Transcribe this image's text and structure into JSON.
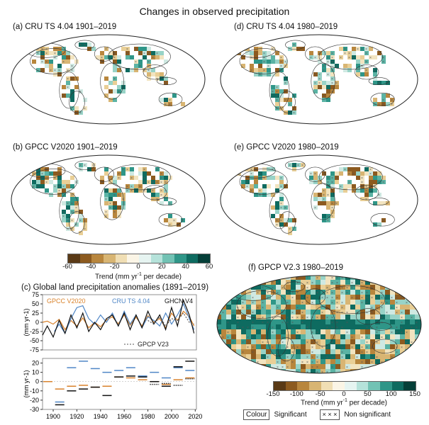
{
  "figure_title": "Changes in observed precipitation",
  "maps": [
    {
      "key": "a",
      "title": "(a) CRU TS 4.04 1901–2019"
    },
    {
      "key": "d",
      "title": "(d) CRU TS 4.04 1980–2019"
    },
    {
      "key": "b",
      "title": "(b) GPCC V2020 1901–2019"
    },
    {
      "key": "e",
      "title": "(e) GPCC V2020 1980–2019"
    },
    {
      "key": "f",
      "title": "(f) GPCP V2.3 1980–2019"
    }
  ],
  "colorbar_left": {
    "ticks": [
      "-60",
      "-40",
      "-20",
      "0",
      "20",
      "40",
      "60"
    ],
    "label": "Trend (mm yr",
    "label_sup": "-1",
    "label_end": " per decade)",
    "colors": [
      "#5a3a16",
      "#8c5a1f",
      "#b8863d",
      "#d8b573",
      "#f0deb4",
      "#fbf5e6",
      "#e6f4f1",
      "#b5e2da",
      "#72c2b4",
      "#2f9688",
      "#0e6b60",
      "#053f38"
    ]
  },
  "colorbar_right": {
    "ticks": [
      "-150",
      "-100",
      "-50",
      "0",
      "50",
      "100",
      "150"
    ],
    "label": "Trend (mm yr",
    "label_sup": "-1",
    "label_end": " per decade)",
    "colors": [
      "#5a3a16",
      "#8c5a1f",
      "#b8863d",
      "#d8b573",
      "#f0deb4",
      "#fbf5e6",
      "#e6f4f1",
      "#b5e2da",
      "#72c2b4",
      "#2f9688",
      "#0e6b60",
      "#053f38"
    ]
  },
  "legend_key": {
    "colour": "Colour",
    "significant": "Significant",
    "cross": "× × ×",
    "nonsig": "Non significant"
  },
  "panel_c": {
    "title": "(c) Global land precipitation anomalies (1891–2019)",
    "series_labels": {
      "gpcc": "GPCC V2020",
      "cru": "CRU TS 4.04",
      "ghcn": "GHCN V4",
      "gpcp": "GPCP V23"
    },
    "colors": {
      "gpcc": "#d9822b",
      "cru": "#4f86c6",
      "ghcn": "#111111",
      "gpcp": "#555555"
    },
    "top_ylabel": "(mm yr",
    "top_ylabel_sup": "-1",
    "top_yticks": [
      "75",
      "50",
      "25",
      "0",
      "-25",
      "-50",
      "-75"
    ],
    "bottom_ylabel": "(mm yr",
    "bottom_ylabel_sup": "-1",
    "bottom_yticks": [
      "20",
      "10",
      "0",
      "-10",
      "-20",
      "-30"
    ],
    "xticks": [
      "1900",
      "1920",
      "1940",
      "1960",
      "1980",
      "2000",
      "2020"
    ]
  },
  "chart_data": {
    "type": "line",
    "x_range": [
      1891,
      2019
    ],
    "top_ylim": [
      -75,
      75
    ],
    "bottom_ylim": [
      -30,
      25
    ],
    "series": [
      {
        "name": "GPCC V2020",
        "years": [
          1891,
          1895,
          1900,
          1905,
          1910,
          1915,
          1920,
          1925,
          1930,
          1935,
          1940,
          1945,
          1950,
          1955,
          1960,
          1965,
          1970,
          1975,
          1980,
          1985,
          1990,
          1995,
          2000,
          2005,
          2010,
          2015,
          2019
        ],
        "values": [
          0,
          3,
          -5,
          8,
          -20,
          5,
          -10,
          12,
          -15,
          0,
          -12,
          6,
          15,
          -4,
          20,
          -8,
          14,
          -10,
          18,
          0,
          10,
          -15,
          25,
          5,
          30,
          15,
          -10
        ]
      },
      {
        "name": "CRU TS 4.04",
        "years": [
          1901,
          1905,
          1910,
          1915,
          1920,
          1925,
          1930,
          1935,
          1940,
          1945,
          1950,
          1955,
          1960,
          1965,
          1970,
          1975,
          1980,
          1985,
          1990,
          1995,
          2000,
          2005,
          2010,
          2015,
          2019
        ],
        "values": [
          -25,
          -5,
          -30,
          10,
          40,
          45,
          10,
          -5,
          20,
          0,
          25,
          -10,
          30,
          -5,
          20,
          -15,
          15,
          5,
          -10,
          25,
          -5,
          20,
          50,
          10,
          -20
        ]
      },
      {
        "name": "GHCN V4",
        "years": [
          1891,
          1895,
          1900,
          1905,
          1910,
          1915,
          1920,
          1925,
          1930,
          1935,
          1940,
          1945,
          1950,
          1955,
          1960,
          1965,
          1970,
          1975,
          1980,
          1985,
          1990,
          1995,
          2000,
          2005,
          2010,
          2015,
          2019
        ],
        "values": [
          -35,
          -10,
          -40,
          5,
          -30,
          20,
          -15,
          25,
          -25,
          0,
          -20,
          10,
          20,
          -10,
          25,
          -20,
          20,
          -15,
          30,
          -5,
          20,
          -20,
          40,
          -10,
          60,
          20,
          -30
        ]
      },
      {
        "name": "GPCP V23",
        "years": [
          1980,
          1985,
          1990,
          1995,
          2000,
          2005,
          2010,
          2015,
          2019
        ],
        "values": [
          5,
          -5,
          15,
          -10,
          10,
          5,
          25,
          0,
          -5
        ]
      }
    ],
    "decadal": [
      {
        "name": "GPCC V2020",
        "decades": [
          1891,
          1901,
          1911,
          1921,
          1931,
          1941,
          1951,
          1961,
          1971,
          1981,
          1991,
          2001,
          2011
        ],
        "values": [
          0,
          -8,
          -5,
          -4,
          -6,
          -5,
          5,
          4,
          2,
          0,
          -3,
          2,
          4
        ]
      },
      {
        "name": "CRU TS 4.04",
        "decades": [
          1901,
          1911,
          1921,
          1931,
          1941,
          1951,
          1961,
          1971,
          1981,
          1991,
          2001,
          2011
        ],
        "values": [
          -22,
          15,
          22,
          14,
          10,
          12,
          15,
          6,
          10,
          4,
          15,
          12
        ]
      },
      {
        "name": "GHCN V4",
        "decades": [
          1901,
          1911,
          1921,
          1931,
          1941,
          1951,
          1961,
          1971,
          1981,
          1991,
          2001,
          2011
        ],
        "values": [
          -25,
          -10,
          -8,
          -6,
          -15,
          5,
          6,
          5,
          0,
          -5,
          16,
          22
        ]
      },
      {
        "name": "GPCP V23",
        "decades": [
          1981,
          1991,
          2001,
          2011
        ],
        "values": [
          -3,
          -2,
          -4,
          3
        ]
      }
    ]
  }
}
